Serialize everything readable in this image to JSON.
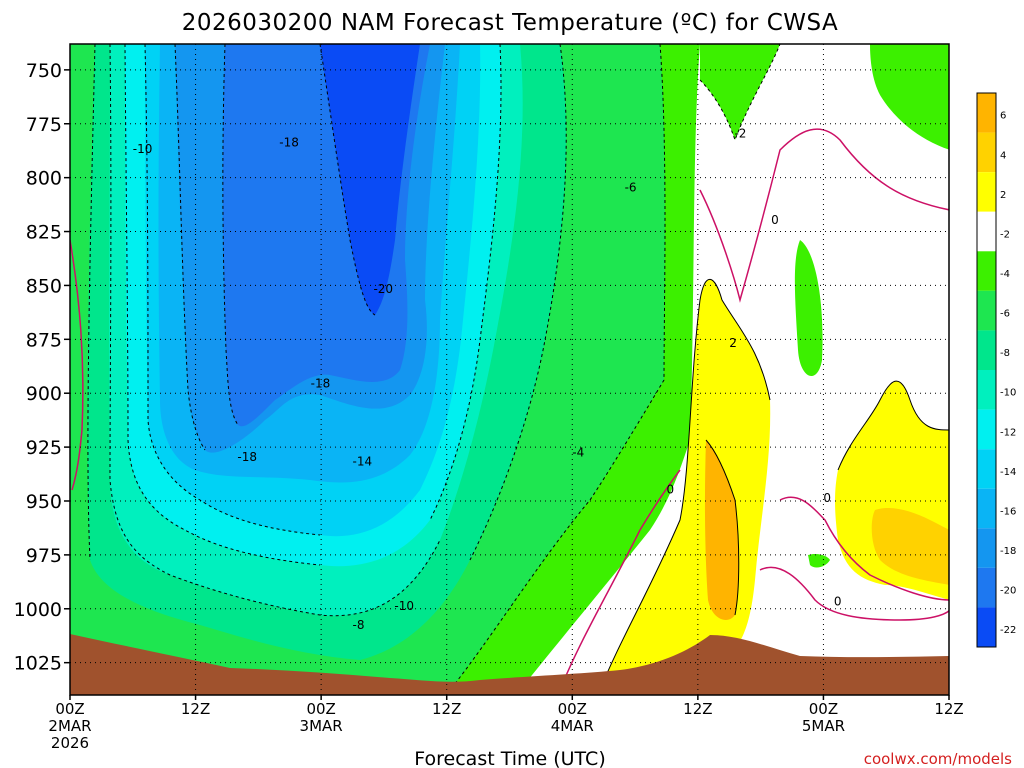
{
  "chart_data": {
    "type": "heatmap",
    "title": "2026030200 NAM Forecast Temperature (ºC) for CWSA",
    "xlabel": "Forecast Time (UTC)",
    "credit": "coolwx.com/models",
    "y_axis": {
      "ticks": [
        "750",
        "775",
        "800",
        "825",
        "850",
        "875",
        "900",
        "925",
        "950",
        "975",
        "1000",
        "1025"
      ],
      "range_hpa": [
        738,
        1040
      ],
      "inverted": true
    },
    "x_axis": {
      "range_hours": [
        0,
        84
      ],
      "ticks": [
        {
          "line1": "00Z",
          "line2": "2MAR",
          "line3": "2026"
        },
        {
          "line1": "12Z",
          "line2": "",
          "line3": ""
        },
        {
          "line1": "00Z",
          "line2": "3MAR",
          "line3": ""
        },
        {
          "line1": "12Z",
          "line2": "",
          "line3": ""
        },
        {
          "line1": "00Z",
          "line2": "4MAR",
          "line3": ""
        },
        {
          "line1": "12Z",
          "line2": "",
          "line3": ""
        },
        {
          "line1": "00Z",
          "line2": "5MAR",
          "line3": ""
        },
        {
          "line1": "12Z",
          "line2": "",
          "line3": ""
        }
      ]
    },
    "grid": true,
    "colorbar": {
      "labels": [
        "6",
        "4",
        "2",
        "-2",
        "-4",
        "-6",
        "-8",
        "-10",
        "-12",
        "-14",
        "-16",
        "-18",
        "-20",
        "-22"
      ],
      "colors": [
        "#ffb400",
        "#ffd200",
        "#ffff00",
        "#ffffff",
        "#3cf000",
        "#1ee650",
        "#00e68c",
        "#00f0be",
        "#00f0f0",
        "#00d2f5",
        "#0ab4f5",
        "#1496f0",
        "#1e78f0",
        "#0a4bf5"
      ]
    },
    "contour_labels": [
      {
        "text": "-10",
        "hour": 6,
        "hpa": 788
      },
      {
        "text": "-18",
        "hour": 20,
        "hpa": 785
      },
      {
        "text": "-20",
        "hour": 29,
        "hpa": 853
      },
      {
        "text": "-18",
        "hour": 23,
        "hpa": 897
      },
      {
        "text": "-18",
        "hour": 16,
        "hpa": 931
      },
      {
        "text": "-14",
        "hour": 27,
        "hpa": 933
      },
      {
        "text": "-10",
        "hour": 31,
        "hpa": 1000
      },
      {
        "text": "-8",
        "hour": 27,
        "hpa": 1009
      },
      {
        "text": "-6",
        "hour": 53,
        "hpa": 806
      },
      {
        "text": "-4",
        "hour": 48,
        "hpa": 929
      },
      {
        "text": "-2",
        "hour": 63.5,
        "hpa": 781
      },
      {
        "text": "0",
        "hour": 67,
        "hpa": 821
      },
      {
        "text": "2",
        "hour": 63,
        "hpa": 878
      },
      {
        "text": "0",
        "hour": 57,
        "hpa": 946
      },
      {
        "text": "0",
        "hour": 72,
        "hpa": 950
      },
      {
        "text": "0",
        "hour": 73,
        "hpa": 998
      }
    ]
  }
}
